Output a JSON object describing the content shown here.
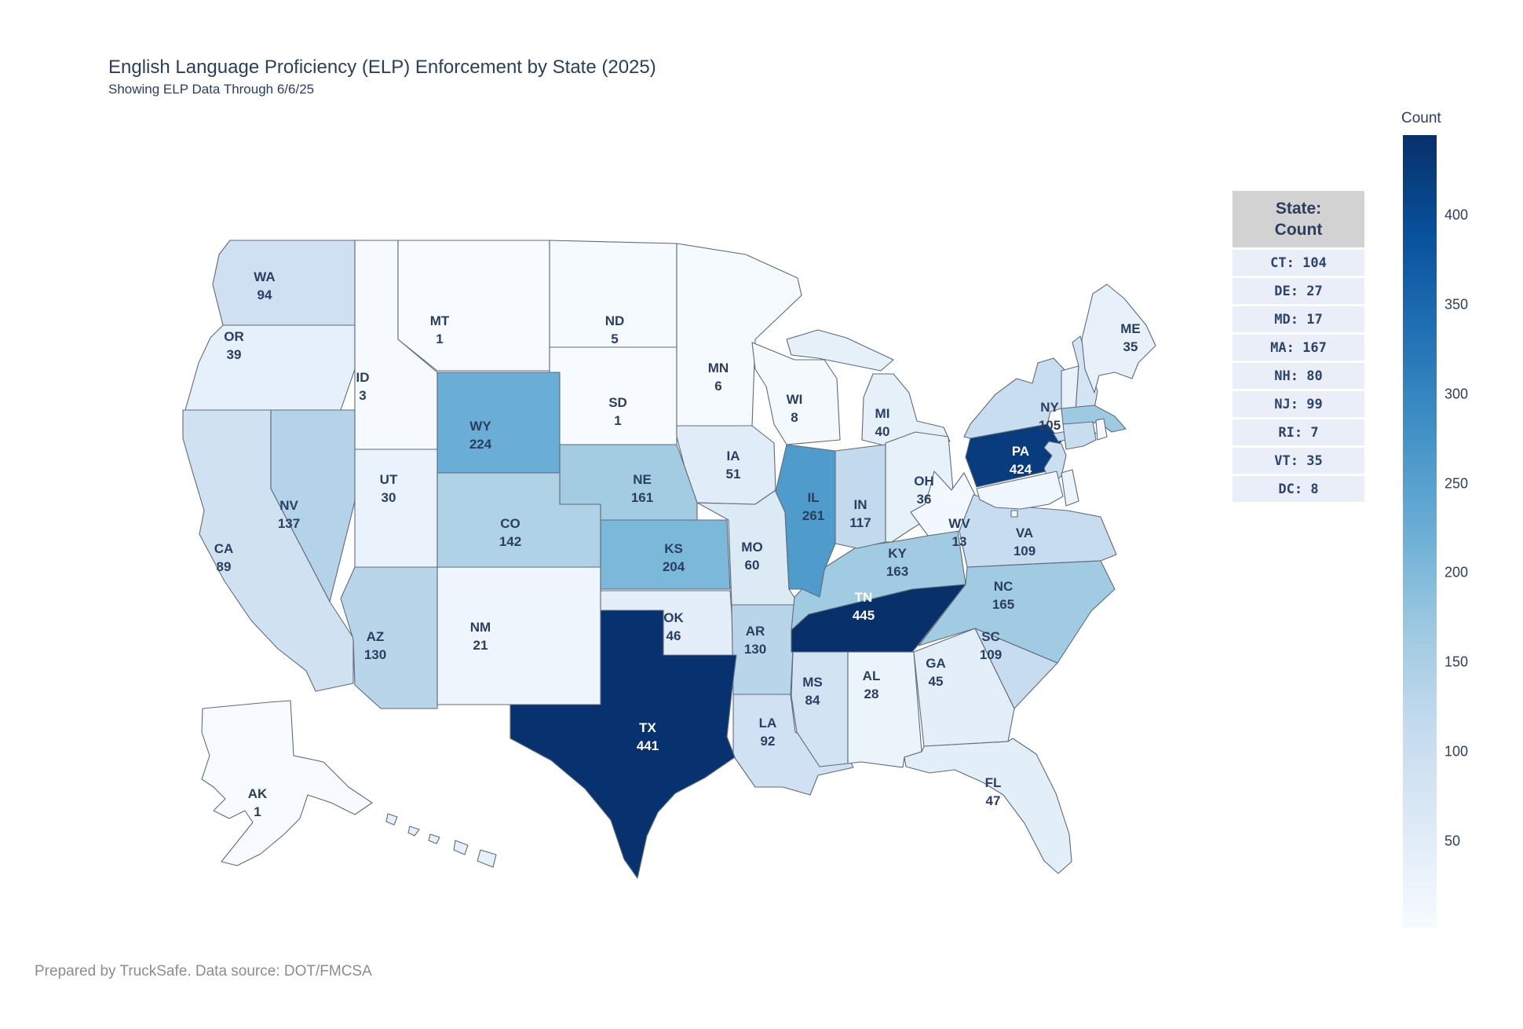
{
  "title": "English Language Proficiency (ELP) Enforcement by State (2025)",
  "subtitle": "Showing ELP Data Through 6/6/25",
  "footer": "Prepared by TruckSafe. Data source: DOT/FMCSA",
  "colorbar": {
    "title": "Count",
    "min": 1,
    "max": 445,
    "ticks": [
      400,
      350,
      300,
      250,
      200,
      150,
      100,
      50
    ],
    "colorscale": [
      "#f7fbff",
      "#deebf7",
      "#c6dbef",
      "#9ecae1",
      "#6baed6",
      "#4292c6",
      "#2171b5",
      "#08519c",
      "#08306b"
    ]
  },
  "legend_panel": {
    "header_line1": "State:",
    "header_line2": "Count",
    "items": [
      "CT",
      "DE",
      "MD",
      "MA",
      "NH",
      "NJ",
      "RI",
      "VT",
      "DC"
    ]
  },
  "map": {
    "no_data_fill": "#e7f0f9",
    "border_color": "#5f6b78",
    "label_dark_color": "#2a3f5f",
    "label_light_color": "#ffffff",
    "light_label_threshold": 300
  },
  "chart_data": {
    "type": "choropleth",
    "region": "USA states",
    "title": "English Language Proficiency (ELP) Enforcement by State (2025)",
    "subtitle": "Showing ELP Data Through 6/6/25",
    "legend_title": "Count",
    "colorscale_name": "Blues",
    "value_range": [
      1,
      445
    ],
    "states": [
      {
        "abbr": "WA",
        "value": 94
      },
      {
        "abbr": "OR",
        "value": 39
      },
      {
        "abbr": "ID",
        "value": 3
      },
      {
        "abbr": "MT",
        "value": 1
      },
      {
        "abbr": "ND",
        "value": 5
      },
      {
        "abbr": "SD",
        "value": 1
      },
      {
        "abbr": "MN",
        "value": 6
      },
      {
        "abbr": "WI",
        "value": 8
      },
      {
        "abbr": "MI",
        "value": 40
      },
      {
        "abbr": "IA",
        "value": 51
      },
      {
        "abbr": "NE",
        "value": 161
      },
      {
        "abbr": "WY",
        "value": 224
      },
      {
        "abbr": "UT",
        "value": 30
      },
      {
        "abbr": "NV",
        "value": 137
      },
      {
        "abbr": "CA",
        "value": 89
      },
      {
        "abbr": "CO",
        "value": 142
      },
      {
        "abbr": "KS",
        "value": 204
      },
      {
        "abbr": "MO",
        "value": 60
      },
      {
        "abbr": "IL",
        "value": 261
      },
      {
        "abbr": "IN",
        "value": 117
      },
      {
        "abbr": "OH",
        "value": 36
      },
      {
        "abbr": "WV",
        "value": 13
      },
      {
        "abbr": "VA",
        "value": 109
      },
      {
        "abbr": "KY",
        "value": 163
      },
      {
        "abbr": "NC",
        "value": 165
      },
      {
        "abbr": "TN",
        "value": 445
      },
      {
        "abbr": "OK",
        "value": 46
      },
      {
        "abbr": "AR",
        "value": 130
      },
      {
        "abbr": "SC",
        "value": 109
      },
      {
        "abbr": "GA",
        "value": 45
      },
      {
        "abbr": "AL",
        "value": 28
      },
      {
        "abbr": "MS",
        "value": 84
      },
      {
        "abbr": "LA",
        "value": 92
      },
      {
        "abbr": "TX",
        "value": 441
      },
      {
        "abbr": "NM",
        "value": 21
      },
      {
        "abbr": "AZ",
        "value": 130
      },
      {
        "abbr": "FL",
        "value": 47
      },
      {
        "abbr": "AK",
        "value": 1
      },
      {
        "abbr": "ME",
        "value": 35
      },
      {
        "abbr": "NY",
        "value": 105
      },
      {
        "abbr": "PA",
        "value": 424
      },
      {
        "abbr": "CT",
        "value": 104
      },
      {
        "abbr": "DE",
        "value": 27
      },
      {
        "abbr": "MD",
        "value": 17
      },
      {
        "abbr": "MA",
        "value": 167
      },
      {
        "abbr": "NH",
        "value": 80
      },
      {
        "abbr": "NJ",
        "value": 99
      },
      {
        "abbr": "RI",
        "value": 7
      },
      {
        "abbr": "VT",
        "value": 35
      },
      {
        "abbr": "DC",
        "value": 8
      }
    ]
  }
}
